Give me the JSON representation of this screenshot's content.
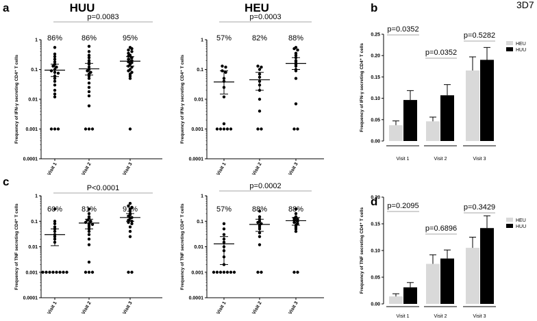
{
  "figure": {
    "label_3d7": "3D7",
    "colors": {
      "heu": "#d9d9d9",
      "huu": "#000000",
      "axis": "#000000",
      "bracket": "#888888"
    }
  },
  "chart_data": [
    {
      "id": "a1",
      "panel_letter": "a",
      "group_title": "HUU",
      "type": "scatter",
      "scale": "log",
      "ylim": [
        0.0001,
        1
      ],
      "yticks": [
        "0.0001",
        "0.001",
        "0.01",
        "0.1",
        "1"
      ],
      "ylabel": "Frequency of IFN-γ secreting CD4⁺ T cells",
      "categories": [
        "Visit 1",
        "Visit 2",
        "Visit 3"
      ],
      "percentages": [
        "86%",
        "86%",
        "95%"
      ],
      "p_value": "p=0.0083",
      "summary": [
        {
          "mean": 0.095,
          "low": 0.058,
          "high": 0.15
        },
        {
          "mean": 0.105,
          "low": 0.065,
          "high": 0.16
        },
        {
          "mean": 0.19,
          "low": 0.13,
          "high": 0.27
        }
      ],
      "points": [
        [
          0.55,
          0.33,
          0.27,
          0.22,
          0.18,
          0.15,
          0.13,
          0.12,
          0.1,
          0.09,
          0.08,
          0.075,
          0.06,
          0.05,
          0.04,
          0.03,
          0.02,
          0.015,
          0.012,
          0.001,
          0.001,
          0.001
        ],
        [
          0.6,
          0.4,
          0.3,
          0.25,
          0.2,
          0.17,
          0.15,
          0.12,
          0.1,
          0.09,
          0.08,
          0.07,
          0.06,
          0.05,
          0.035,
          0.025,
          0.018,
          0.013,
          0.006,
          0.001,
          0.001,
          0.001
        ],
        [
          0.55,
          0.45,
          0.5,
          0.35,
          0.4,
          0.3,
          0.28,
          0.25,
          0.22,
          0.2,
          0.18,
          0.17,
          0.15,
          0.13,
          0.12,
          0.1,
          0.09,
          0.08,
          0.07,
          0.06,
          0.05,
          0.001
        ]
      ]
    },
    {
      "id": "a2",
      "panel_letter": "",
      "group_title": "HEU",
      "type": "scatter",
      "scale": "log",
      "ylim": [
        0.0001,
        1
      ],
      "yticks": [
        "0.0001",
        "0.001",
        "0.01",
        "0.1",
        "1"
      ],
      "ylabel": "Frequency of IFN-γ secreting CD4⁺ T cells",
      "categories": [
        "Visit 1",
        "Visit 2",
        "Visit 3"
      ],
      "percentages": [
        "57%",
        "82%",
        "88%"
      ],
      "p_value": "p=0.0003",
      "summary": [
        {
          "mean": 0.038,
          "low": 0.015,
          "high": 0.09
        },
        {
          "mean": 0.045,
          "low": 0.02,
          "high": 0.08
        },
        {
          "mean": 0.16,
          "low": 0.1,
          "high": 0.25
        }
      ],
      "points": [
        [
          0.13,
          0.12,
          0.09,
          0.08,
          0.05,
          0.04,
          0.025,
          0.012,
          0.0015,
          0.001,
          0.001,
          0.001,
          0.001,
          0.001
        ],
        [
          0.13,
          0.12,
          0.1,
          0.07,
          0.055,
          0.04,
          0.03,
          0.02,
          0.01,
          0.004,
          0.001,
          0.001
        ],
        [
          0.55,
          0.5,
          0.45,
          0.35,
          0.3,
          0.25,
          0.2,
          0.18,
          0.15,
          0.13,
          0.1,
          0.09,
          0.05,
          0.007,
          0.001,
          0.001
        ]
      ]
    },
    {
      "id": "b",
      "panel_letter": "b",
      "type": "bar",
      "ylim": [
        0,
        0.25
      ],
      "yticks": [
        "0.00",
        "0.05",
        "0.10",
        "0.15",
        "0.20",
        "0.25"
      ],
      "ylabel": "Frequency of IFN-γ secreting CD4⁺ T cells",
      "categories": [
        "Visit 1",
        "Visit 2",
        "Visit 3"
      ],
      "legend": [
        "HEU",
        "HUU"
      ],
      "series": [
        {
          "name": "HEU",
          "values": [
            0.037,
            0.046,
            0.165
          ],
          "errors": [
            0.01,
            0.01,
            0.032
          ]
        },
        {
          "name": "HUU",
          "values": [
            0.096,
            0.107,
            0.19
          ],
          "errors": [
            0.022,
            0.025,
            0.029
          ]
        }
      ],
      "p_values": [
        "p=0.0352",
        "p=0.0352",
        "p=0.5282"
      ]
    },
    {
      "id": "c1",
      "panel_letter": "c",
      "group_title": "",
      "type": "scatter",
      "scale": "log",
      "ylim": [
        0.0001,
        1
      ],
      "yticks": [
        "0.0001",
        "0.001",
        "0.01",
        "0.1",
        "1"
      ],
      "ylabel": "Frequency of TNF secreting CD4⁺ T cells",
      "categories": [
        "Visit 1",
        "Visit 2",
        "Visit 3"
      ],
      "percentages": [
        "60%",
        "81%",
        "91%"
      ],
      "p_value": "P<0.0001",
      "summary": [
        {
          "mean": 0.03,
          "low": 0.011,
          "high": 0.05
        },
        {
          "mean": 0.085,
          "low": 0.05,
          "high": 0.12
        },
        {
          "mean": 0.14,
          "low": 0.1,
          "high": 0.2
        }
      ],
      "points": [
        [
          0.3,
          0.1,
          0.08,
          0.06,
          0.05,
          0.04,
          0.03,
          0.025,
          0.02,
          0.015,
          0.001,
          0.001,
          0.001,
          0.001,
          0.001,
          0.001,
          0.001,
          0.001
        ],
        [
          0.3,
          0.2,
          0.15,
          0.13,
          0.11,
          0.1,
          0.09,
          0.08,
          0.075,
          0.07,
          0.06,
          0.05,
          0.04,
          0.03,
          0.02,
          0.012,
          0.0025,
          0.001,
          0.001,
          0.001
        ],
        [
          0.5,
          0.4,
          0.35,
          0.3,
          0.25,
          0.2,
          0.18,
          0.16,
          0.14,
          0.13,
          0.11,
          0.1,
          0.09,
          0.08,
          0.06,
          0.04,
          0.025,
          0.001,
          0.001
        ]
      ]
    },
    {
      "id": "c2",
      "panel_letter": "",
      "group_title": "",
      "type": "scatter",
      "scale": "log",
      "ylim": [
        0.0001,
        1
      ],
      "yticks": [
        "0.0001",
        "0.001",
        "0.01",
        "0.1",
        "1"
      ],
      "ylabel": "Frequency of TNF secreting CD4⁺ T cells",
      "categories": [
        "Visit 1",
        "Visit 2",
        "Visit 3"
      ],
      "percentages": [
        "57%",
        "88%",
        "88%"
      ],
      "p_value": "p=0.0002",
      "summary": [
        {
          "mean": 0.013,
          "low": 0.002,
          "high": 0.025
        },
        {
          "mean": 0.075,
          "low": 0.04,
          "high": 0.12
        },
        {
          "mean": 0.105,
          "low": 0.07,
          "high": 0.14
        }
      ],
      "points": [
        [
          0.08,
          0.05,
          0.03,
          0.02,
          0.015,
          0.01,
          0.007,
          0.004,
          0.002,
          0.001,
          0.001,
          0.001,
          0.001,
          0.001,
          0.001,
          0.001
        ],
        [
          0.25,
          0.15,
          0.12,
          0.1,
          0.09,
          0.08,
          0.07,
          0.06,
          0.05,
          0.035,
          0.025,
          0.012,
          0.001,
          0.001
        ],
        [
          0.3,
          0.2,
          0.15,
          0.13,
          0.12,
          0.11,
          0.1,
          0.09,
          0.08,
          0.07,
          0.06,
          0.05,
          0.04,
          0.001,
          0.001
        ]
      ]
    },
    {
      "id": "d",
      "panel_letter": "d",
      "type": "bar",
      "ylim": [
        0,
        0.2
      ],
      "yticks": [
        "0.00",
        "0.05",
        "0.10",
        "0.15",
        "0.20"
      ],
      "ylabel": "Frequency of TNF secreting CD4⁺ T cells",
      "categories": [
        "Visit 1",
        "Visit 2",
        "Visit 3"
      ],
      "legend": [
        "HEU",
        "HUU"
      ],
      "series": [
        {
          "name": "HEU",
          "values": [
            0.014,
            0.075,
            0.105
          ],
          "errors": [
            0.005,
            0.017,
            0.02
          ]
        },
        {
          "name": "HUU",
          "values": [
            0.031,
            0.085,
            0.142
          ],
          "errors": [
            0.009,
            0.016,
            0.023
          ]
        }
      ],
      "p_values": [
        "p=0.2095",
        "p=0.6896",
        "p=0.3429"
      ]
    }
  ]
}
